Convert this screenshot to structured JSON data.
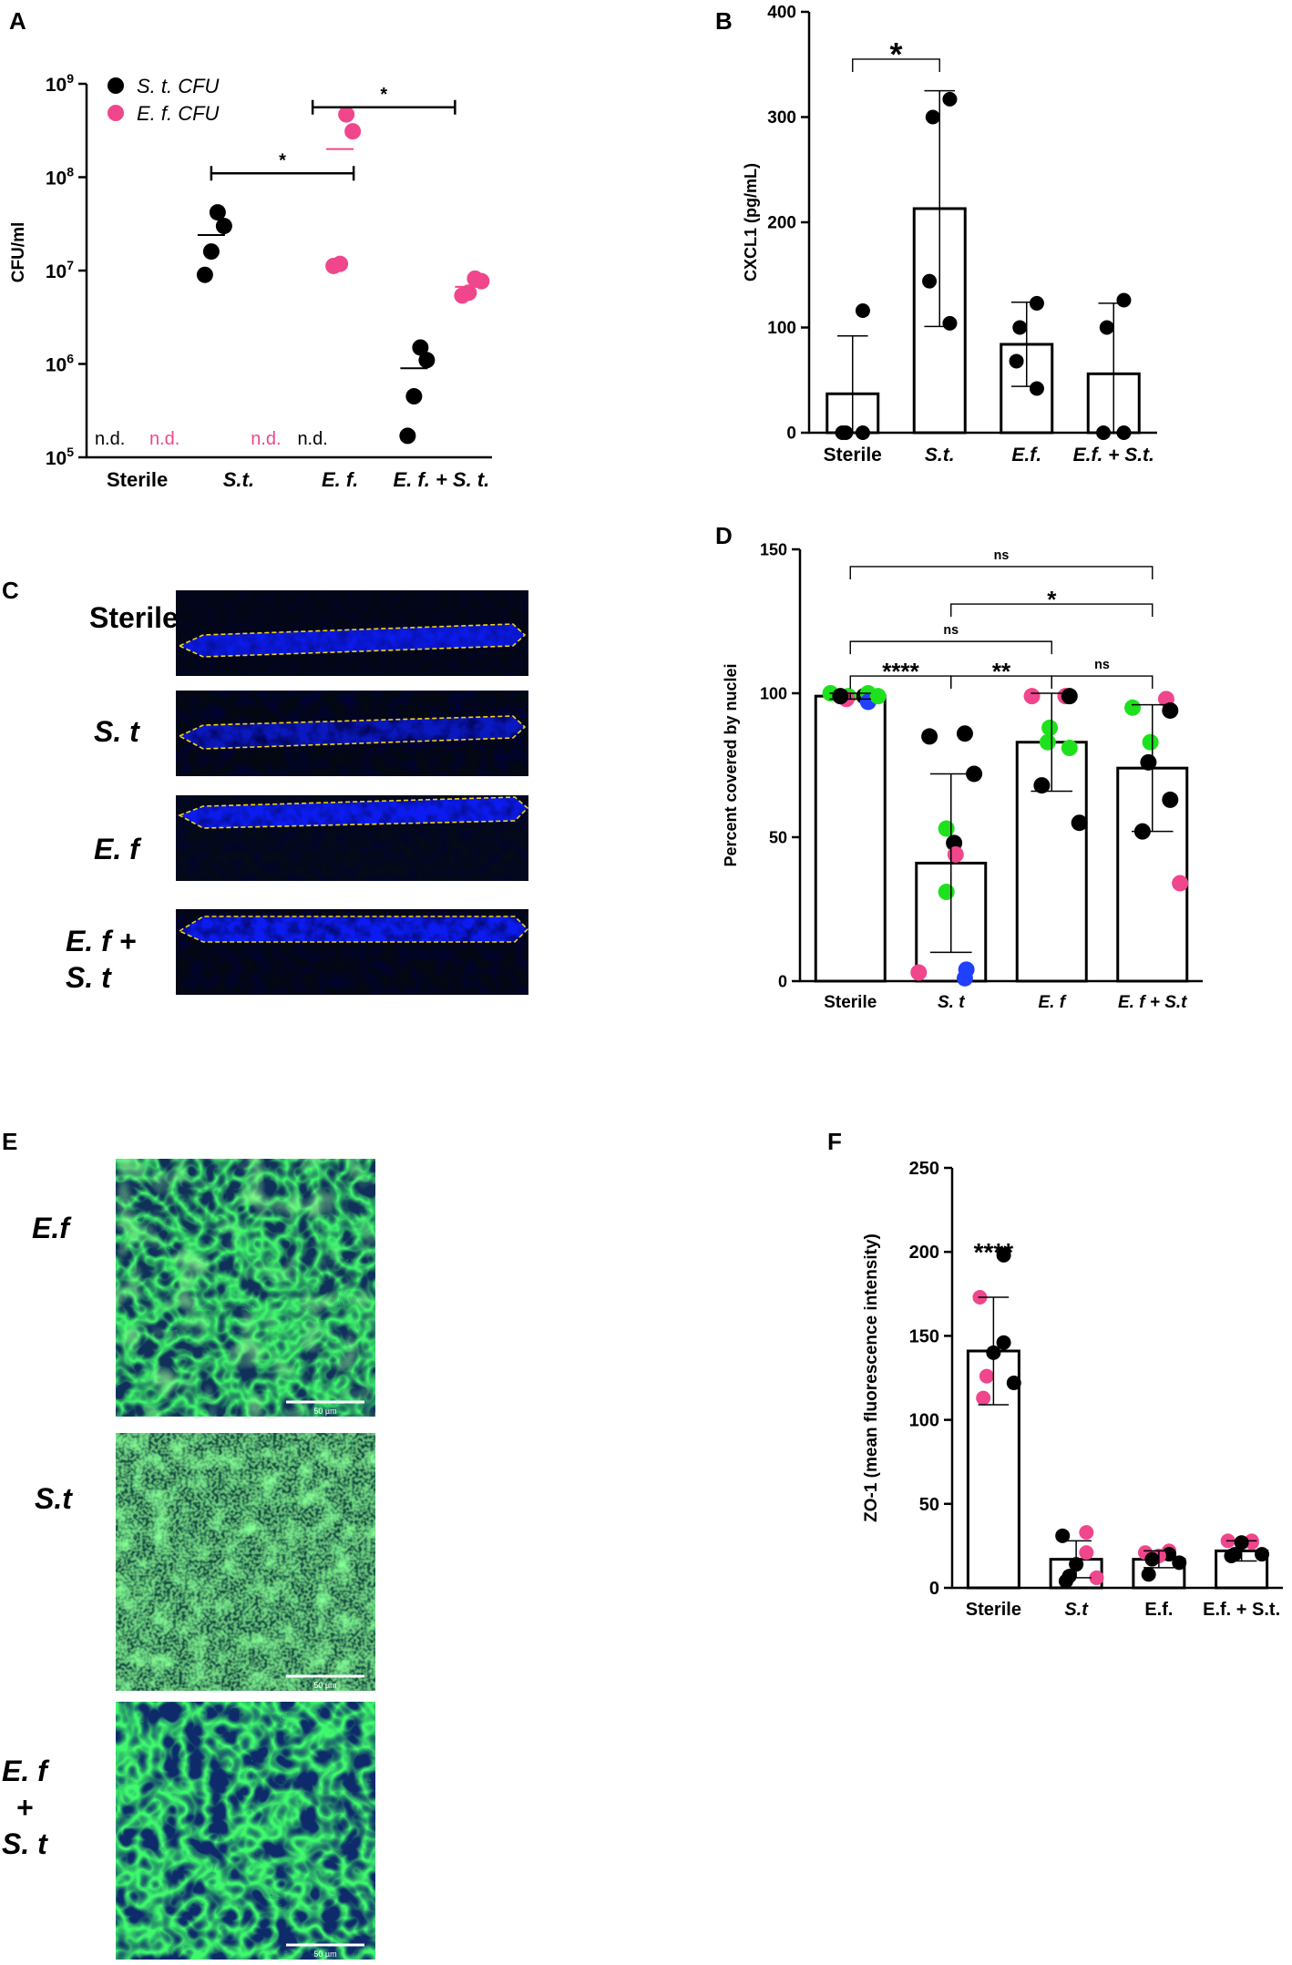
{
  "chart_data": [
    {
      "id": "A",
      "panel_label": "A",
      "type": "scatter",
      "ylabel": "CFU/ml",
      "yscale": "log",
      "ylim": [
        100000,
        1000000000
      ],
      "y_ticks": [
        {
          "value": 100000,
          "base": "10",
          "exp": "5"
        },
        {
          "value": 1000000,
          "base": "10",
          "exp": "6"
        },
        {
          "value": 10000000,
          "base": "10",
          "exp": "7"
        },
        {
          "value": 100000000,
          "base": "10",
          "exp": "8"
        },
        {
          "value": 1000000000,
          "base": "10",
          "exp": "9"
        }
      ],
      "categories": [
        "Sterile",
        "S.t.",
        "E. f.",
        "E. f. + S. t."
      ],
      "italic_categories": [
        false,
        true,
        true,
        true
      ],
      "legend": [
        {
          "label": "S. t.  CFU",
          "color": "#000000"
        },
        {
          "label": "E. f. CFU",
          "color": "#f0468c"
        }
      ],
      "series": [
        {
          "name": "S. t.  CFU",
          "color": "#000000",
          "points": [
            {
              "category": "S.t.",
              "values": [
                42000000,
                30000000,
                16000000,
                9000000
              ],
              "mean": 24000000
            },
            {
              "category": "E. f. + S. t.",
              "values": [
                1500000,
                1100000,
                450000,
                170000
              ],
              "mean": 900000
            }
          ]
        },
        {
          "name": "E. f. CFU",
          "color": "#f0468c",
          "points": [
            {
              "category": "E. f.",
              "values": [
                470000000,
                310000000,
                11800000,
                11200000
              ],
              "mean": 200000000
            },
            {
              "category": "E. f. + S. t.",
              "values": [
                8200000,
                7700000,
                5800000,
                5400000
              ],
              "mean": 6700000
            }
          ]
        }
      ],
      "not_detected": [
        {
          "category": "Sterile",
          "series": "S. t.  CFU",
          "text": "n.d.",
          "color": "#000000"
        },
        {
          "category": "Sterile",
          "series": "E. f. CFU",
          "text": "n.d.",
          "color": "#f0468c"
        },
        {
          "category": "S.t.",
          "series": "E. f. CFU",
          "text": "n.d.",
          "color": "#f0468c"
        },
        {
          "category": "E. f.",
          "series": "S. t.  CFU",
          "text": "n.d.",
          "color": "#000000"
        }
      ],
      "significance": [
        {
          "from": "S.t.",
          "to": "E. f.",
          "label": "*",
          "y": 110000000
        },
        {
          "from": "E. f.",
          "to": "E. f. + S. t.",
          "label": "*",
          "y": 560000000
        }
      ]
    },
    {
      "id": "B",
      "panel_label": "B",
      "type": "bar",
      "ylabel": "CXCL1 (pg/mL)",
      "ylim": [
        0,
        400
      ],
      "y_ticks": [
        0,
        100,
        200,
        300,
        400
      ],
      "categories": [
        "Sterile",
        "S.t.",
        "E.f.",
        "E.f. + S.t."
      ],
      "italic_categories": [
        false,
        true,
        true,
        true
      ],
      "values": [
        37,
        213,
        84,
        56
      ],
      "error": [
        55,
        112,
        40,
        67
      ],
      "points": [
        [
          116,
          0,
          0,
          0
        ],
        [
          317,
          300,
          144,
          104
        ],
        [
          123,
          100,
          68,
          42
        ],
        [
          126,
          100,
          0,
          0
        ]
      ],
      "point_colors": [
        [
          "#000000",
          "#000000",
          "#000000",
          "#000000"
        ],
        [
          "#000000",
          "#000000",
          "#000000",
          "#000000"
        ],
        [
          "#000000",
          "#000000",
          "#000000",
          "#000000"
        ],
        [
          "#000000",
          "#000000",
          "#000000",
          "#000000"
        ]
      ],
      "significance": [
        {
          "from": "Sterile",
          "to": "S.t.",
          "label": "*",
          "y": 355
        }
      ]
    },
    {
      "id": "D",
      "panel_label": "D",
      "type": "bar",
      "ylabel": "Percent covered by nuclei",
      "ylim": [
        0,
        150
      ],
      "y_ticks": [
        0,
        50,
        100,
        150
      ],
      "categories": [
        "Sterile",
        "S. t",
        "E. f",
        "E. f + S.t"
      ],
      "italic_categories": [
        false,
        true,
        true,
        true
      ],
      "values": [
        99,
        41,
        83,
        74
      ],
      "error": [
        1,
        31,
        17,
        22
      ],
      "points": [
        [
          99,
          100,
          100,
          99,
          98,
          97,
          99,
          99
        ],
        [
          86,
          85,
          72,
          53,
          48,
          44,
          31,
          4,
          3,
          1
        ],
        [
          99,
          99,
          99,
          88,
          83,
          81,
          68,
          55
        ],
        [
          98,
          95,
          94,
          83,
          76,
          63,
          52,
          34
        ]
      ],
      "point_colors": [
        [
          "#000000",
          "#1ee11e",
          "#1ee11e",
          "#1ee11e",
          "#f0468c",
          "#2040ff",
          "#000000",
          "#1ee11e"
        ],
        [
          "#000000",
          "#000000",
          "#000000",
          "#1ee11e",
          "#000000",
          "#f0468c",
          "#1ee11e",
          "#2040ff",
          "#f0468c",
          "#2040ff"
        ],
        [
          "#f0468c",
          "#f0468c",
          "#000000",
          "#1ee11e",
          "#1ee11e",
          "#1ee11e",
          "#000000",
          "#000000"
        ],
        [
          "#f0468c",
          "#1ee11e",
          "#000000",
          "#1ee11e",
          "#000000",
          "#000000",
          "#000000",
          "#f0468c"
        ]
      ],
      "significance": [
        {
          "from": "Sterile",
          "to": "S. t",
          "label": "****",
          "y": 106
        },
        {
          "from": "S. t",
          "to": "E. f",
          "label": "**",
          "y": 106
        },
        {
          "from": "E. f",
          "to": "E. f + S.t",
          "label": "ns",
          "y": 106
        },
        {
          "from": "Sterile",
          "to": "E. f",
          "label": "ns",
          "y": 118
        },
        {
          "from": "S. t",
          "to": "E. f + S.t",
          "label": "*",
          "y": 131
        },
        {
          "from": "Sterile",
          "to": "E. f + S.t",
          "label": "ns",
          "y": 144
        }
      ]
    },
    {
      "id": "F",
      "panel_label": "F",
      "type": "bar",
      "ylabel": "ZO-1 (mean fluorescence intensity)",
      "ylim": [
        0,
        250
      ],
      "y_ticks": [
        0,
        50,
        100,
        150,
        200,
        250
      ],
      "categories": [
        "Sterile",
        "S.t",
        "E.f.",
        "E.f. + S.t."
      ],
      "italic_categories": [
        false,
        true,
        false,
        false
      ],
      "values": [
        141,
        17,
        17,
        22
      ],
      "error": [
        32,
        11,
        5,
        6
      ],
      "points": [
        [
          198,
          173,
          146,
          140,
          126,
          122,
          113
        ],
        [
          33,
          31,
          21,
          14,
          7,
          6,
          4
        ],
        [
          22,
          21,
          20,
          19,
          17,
          15,
          8
        ],
        [
          28,
          28,
          27,
          27,
          20,
          20,
          19
        ]
      ],
      "point_colors": [
        [
          "#000000",
          "#f0468c",
          "#000000",
          "#000000",
          "#f0468c",
          "#000000",
          "#f0468c"
        ],
        [
          "#f0468c",
          "#000000",
          "#f0468c",
          "#000000",
          "#000000",
          "#f0468c",
          "#000000"
        ],
        [
          "#f0468c",
          "#f0468c",
          "#000000",
          "#f0468c",
          "#000000",
          "#000000",
          "#000000"
        ],
        [
          "#f0468c",
          "#f0468c",
          "#f0468c",
          "#000000",
          "#000000",
          "#000000",
          "#000000"
        ]
      ],
      "significance": [
        {
          "category": "Sterile",
          "label": "****",
          "y": 200
        }
      ]
    }
  ],
  "panel_c": {
    "panel_label": "C",
    "rows": [
      {
        "label": "Sterile",
        "italic": false
      },
      {
        "label": "S. t",
        "italic": true
      },
      {
        "label": "E. f",
        "italic": true
      },
      {
        "label": "E. f +\nS. t",
        "italic": true
      }
    ]
  },
  "panel_e": {
    "panel_label": "E",
    "rows": [
      {
        "label": "E.f",
        "scale_label": "50 µm"
      },
      {
        "label": "S.t",
        "scale_label": "50 µm"
      },
      {
        "label": "E. f\n+\nS. t",
        "scale_label": "50 µm"
      }
    ]
  }
}
